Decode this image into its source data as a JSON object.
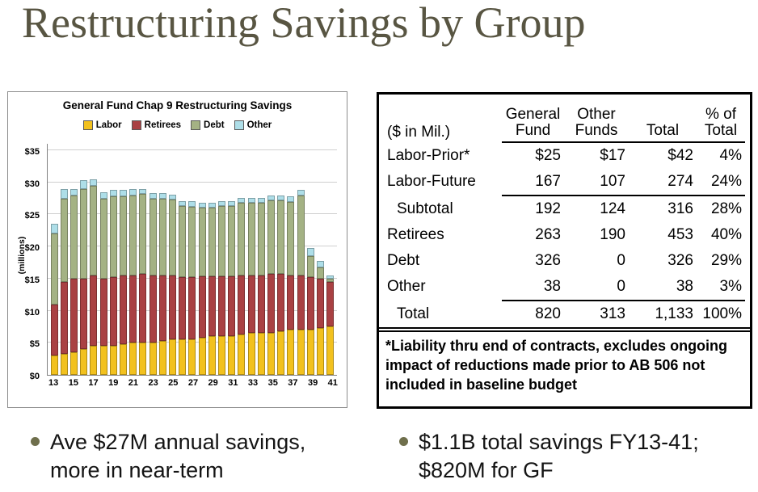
{
  "slide": {
    "title": "Restructuring Savings by Group"
  },
  "colors": {
    "title": "#585542",
    "bullet": "#6F6F4C",
    "labor": "#F2C11E",
    "retirees": "#A94143",
    "debt": "#A4B284",
    "other": "#AEDEE8"
  },
  "chart_data": {
    "type": "bar",
    "stacked": true,
    "title": "General Fund Chap 9 Restructuring Savings",
    "ylabel": "(millions)",
    "ylim": [
      0,
      35
    ],
    "yticks": [
      0,
      5,
      10,
      15,
      20,
      25,
      30,
      35
    ],
    "ytick_prefix": "$",
    "grid": true,
    "legend_position": "top",
    "years": [
      13,
      14,
      15,
      16,
      17,
      18,
      19,
      20,
      21,
      22,
      23,
      24,
      25,
      26,
      27,
      28,
      29,
      30,
      31,
      32,
      33,
      34,
      35,
      36,
      37,
      38,
      39,
      40,
      41
    ],
    "xtick_labels": [
      "13",
      "15",
      "17",
      "19",
      "21",
      "23",
      "25",
      "27",
      "29",
      "31",
      "33",
      "35",
      "37",
      "39",
      "41"
    ],
    "series": [
      {
        "name": "Labor",
        "color": "#F2C11E",
        "values": [
          3.0,
          3.3,
          3.5,
          4.0,
          4.5,
          4.5,
          4.5,
          4.8,
          5.0,
          5.0,
          5.0,
          5.3,
          5.5,
          5.5,
          5.5,
          5.8,
          6.0,
          6.0,
          6.0,
          6.3,
          6.5,
          6.5,
          6.5,
          6.8,
          7.0,
          7.0,
          7.0,
          7.3,
          7.5
        ]
      },
      {
        "name": "Retirees",
        "color": "#A94143",
        "values": [
          8.0,
          11.2,
          11.5,
          11.0,
          11.0,
          10.5,
          10.7,
          10.7,
          10.5,
          10.7,
          10.5,
          10.2,
          10.0,
          9.7,
          9.7,
          9.5,
          9.3,
          9.3,
          9.3,
          9.2,
          9.0,
          9.0,
          9.2,
          8.9,
          8.5,
          8.5,
          8.3,
          7.7,
          7.0
        ]
      },
      {
        "name": "Debt",
        "color": "#A4B284",
        "values": [
          11.0,
          13.0,
          13.0,
          14.0,
          14.0,
          12.5,
          12.6,
          12.3,
          12.5,
          12.5,
          12.0,
          12.0,
          11.8,
          11.1,
          11.0,
          10.7,
          10.7,
          11.0,
          11.0,
          11.3,
          11.3,
          11.3,
          11.5,
          11.5,
          11.5,
          12.5,
          3.2,
          1.8,
          0.5
        ]
      },
      {
        "name": "Other",
        "color": "#AEDEE8",
        "values": [
          1.5,
          1.5,
          1.0,
          1.3,
          1.0,
          1.0,
          1.0,
          1.0,
          1.0,
          0.8,
          0.8,
          0.8,
          0.8,
          0.8,
          0.8,
          0.8,
          0.8,
          0.8,
          0.8,
          0.8,
          0.8,
          0.8,
          0.8,
          0.8,
          0.8,
          0.8,
          1.3,
          1.0,
          0.5
        ]
      }
    ]
  },
  "table": {
    "header": [
      {
        "lines": [
          "($ in Mil.)"
        ],
        "underline": false
      },
      {
        "lines": [
          "General",
          "Fund"
        ],
        "underline": true
      },
      {
        "lines": [
          "Other",
          "Funds"
        ],
        "underline": true
      },
      {
        "lines": [
          "Total"
        ],
        "underline": true
      },
      {
        "lines": [
          "% of",
          "Total"
        ],
        "underline": true
      }
    ],
    "rows": [
      {
        "label": "Labor-Prior*",
        "values": [
          "$25",
          "$17",
          "$42",
          "4%"
        ]
      },
      {
        "label": "Labor-Future",
        "values": [
          "167",
          "107",
          "274",
          "24%"
        ],
        "rule_below": true
      },
      {
        "label": "Subtotal",
        "indent": true,
        "values": [
          "192",
          "124",
          "316",
          "28%"
        ]
      },
      {
        "label": "Retirees",
        "values": [
          "263",
          "190",
          "453",
          "40%"
        ]
      },
      {
        "label": "Debt",
        "values": [
          "326",
          "0",
          "326",
          "29%"
        ]
      },
      {
        "label": "Other",
        "values": [
          "38",
          "0",
          "38",
          "3%"
        ],
        "rule_below": true
      },
      {
        "label": "Total",
        "indent": true,
        "values": [
          "820",
          "313",
          "1,133",
          "100%"
        ]
      }
    ],
    "footnote": "*Liability thru end of contracts, excludes ongoing impact of reductions made prior to AB 506 not included in baseline budget"
  },
  "bullets": [
    {
      "text": "Ave $27M annual savings, more in near-term"
    },
    {
      "text": "$1.1B total savings FY13-41; $820M for GF"
    }
  ]
}
